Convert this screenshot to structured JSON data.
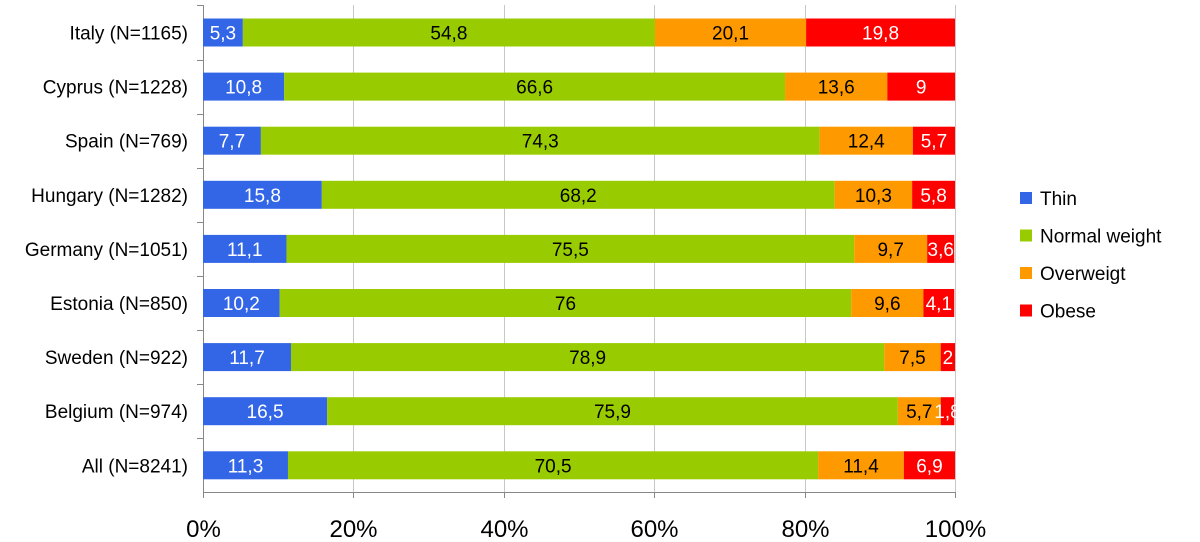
{
  "chart_data": {
    "type": "bar",
    "orientation": "horizontal",
    "stacked": "percent",
    "categories": [
      "Italy (N=1165)",
      "Cyprus (N=1228)",
      "Spain (N=769)",
      "Hungary (N=1282)",
      "Germany (N=1051)",
      "Estonia (N=850)",
      "Sweden (N=922)",
      "Belgium (N=974)",
      "All (N=8241)"
    ],
    "series": [
      {
        "name": "Thin",
        "color": "#3366e6",
        "label_color": "#ffffff",
        "values": [
          5.3,
          10.8,
          7.7,
          15.8,
          11.1,
          10.2,
          11.7,
          16.5,
          11.3
        ],
        "labels": [
          "5,3",
          "10,8",
          "7,7",
          "15,8",
          "11,1",
          "10,2",
          "11,7",
          "16,5",
          "11,3"
        ]
      },
      {
        "name": "Normal weight",
        "color": "#99cc00",
        "label_color": "#000000",
        "values": [
          54.8,
          66.6,
          74.3,
          68.2,
          75.5,
          76,
          78.9,
          75.9,
          70.5
        ],
        "labels": [
          "54,8",
          "66,6",
          "74,3",
          "68,2",
          "75,5",
          "76",
          "78,9",
          "75,9",
          "70,5"
        ]
      },
      {
        "name": "Overweigt",
        "color": "#ff9900",
        "label_color": "#000000",
        "values": [
          20.1,
          13.6,
          12.4,
          10.3,
          9.7,
          9.6,
          7.5,
          5.7,
          11.4
        ],
        "labels": [
          "20,1",
          "13,6",
          "12,4",
          "10,3",
          "9,7",
          "9,6",
          "7,5",
          "5,7",
          "11,4"
        ]
      },
      {
        "name": "Obese",
        "color": "#ff0000",
        "label_color": "#ffffff",
        "values": [
          19.8,
          9,
          5.7,
          5.8,
          3.6,
          4.1,
          2,
          1.8,
          6.9
        ],
        "labels": [
          "19,8",
          "9",
          "5,7",
          "5,8",
          "3,6",
          "4,1",
          "2",
          "1,8",
          "6,9"
        ]
      }
    ],
    "xlim": [
      0,
      100
    ],
    "xticks": [
      "0%",
      "20%",
      "40%",
      "60%",
      "80%",
      "100%"
    ],
    "grid": true,
    "legend": {
      "position": "right",
      "entries": [
        "Thin",
        "Normal weight",
        "Overweigt",
        "Obese"
      ]
    }
  }
}
